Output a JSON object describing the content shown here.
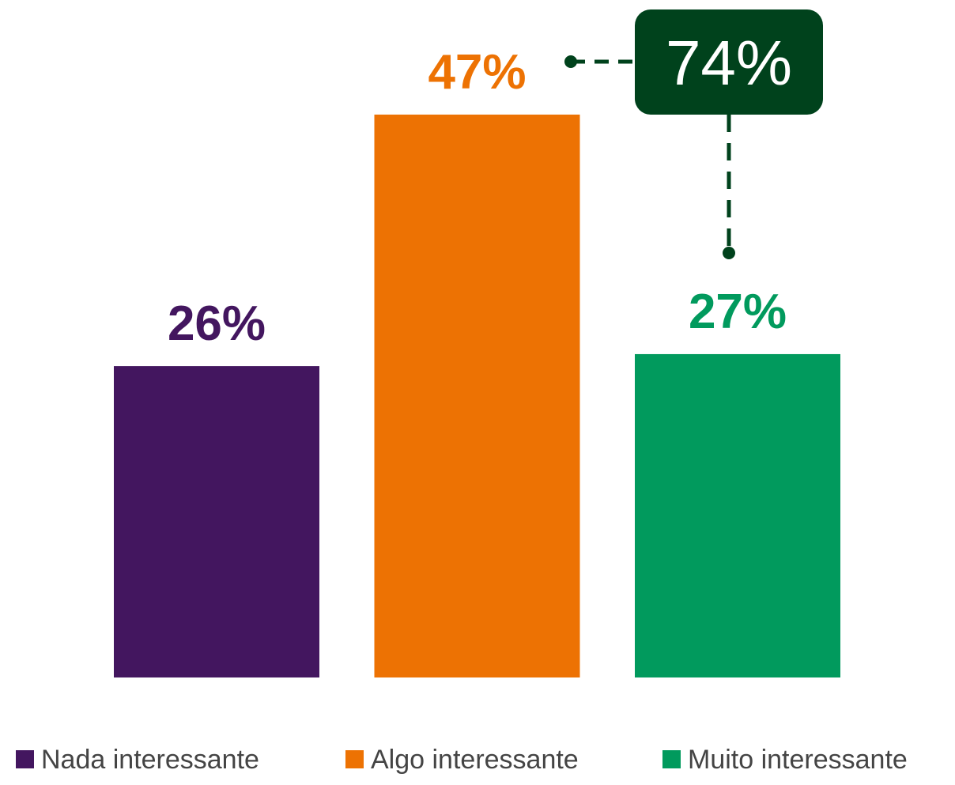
{
  "chart_data": {
    "type": "bar",
    "categories": [
      "Nada interessante",
      "Algo interessante",
      "Muito interessante"
    ],
    "values": [
      26,
      47,
      27
    ],
    "value_labels": [
      "26%",
      "47%",
      "27%"
    ],
    "colors": [
      "#43165f",
      "#ed7203",
      "#019a5d"
    ],
    "annotation": {
      "text": "74%",
      "color": "#00421c"
    },
    "legend": "bottom"
  }
}
